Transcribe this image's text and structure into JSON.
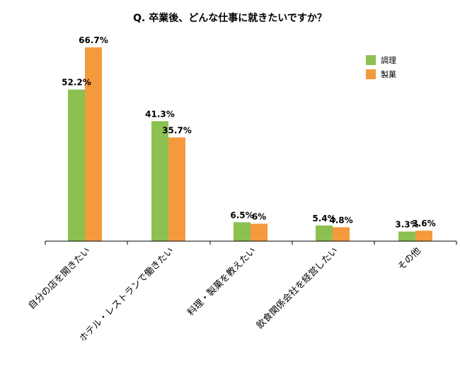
{
  "chart_data": {
    "type": "bar",
    "title": "Q. 卒業後、どんな仕事に就きたいですか？",
    "categories": [
      "自分の店を開きたい",
      "ホテル・レストランで働きたい",
      "料理・製菓を教えたい",
      "飲食関係会社を経営したい",
      "その他"
    ],
    "series": [
      {
        "name": "調理",
        "color": "#8cc152",
        "values": [
          52.2,
          41.3,
          6.5,
          5.4,
          3.3
        ],
        "labels": [
          "52.2%",
          "41.3%",
          "6.5%",
          "5.4%",
          "3.3%"
        ]
      },
      {
        "name": "製菓",
        "color": "#f59a3c",
        "values": [
          66.7,
          35.7,
          6.0,
          4.8,
          3.6
        ],
        "labels": [
          "66.7%",
          "35.7%",
          "6%",
          "4.8%",
          "3.6%"
        ]
      }
    ],
    "ylim": [
      0,
      70
    ],
    "grid": false,
    "legend_position": "top-right"
  }
}
